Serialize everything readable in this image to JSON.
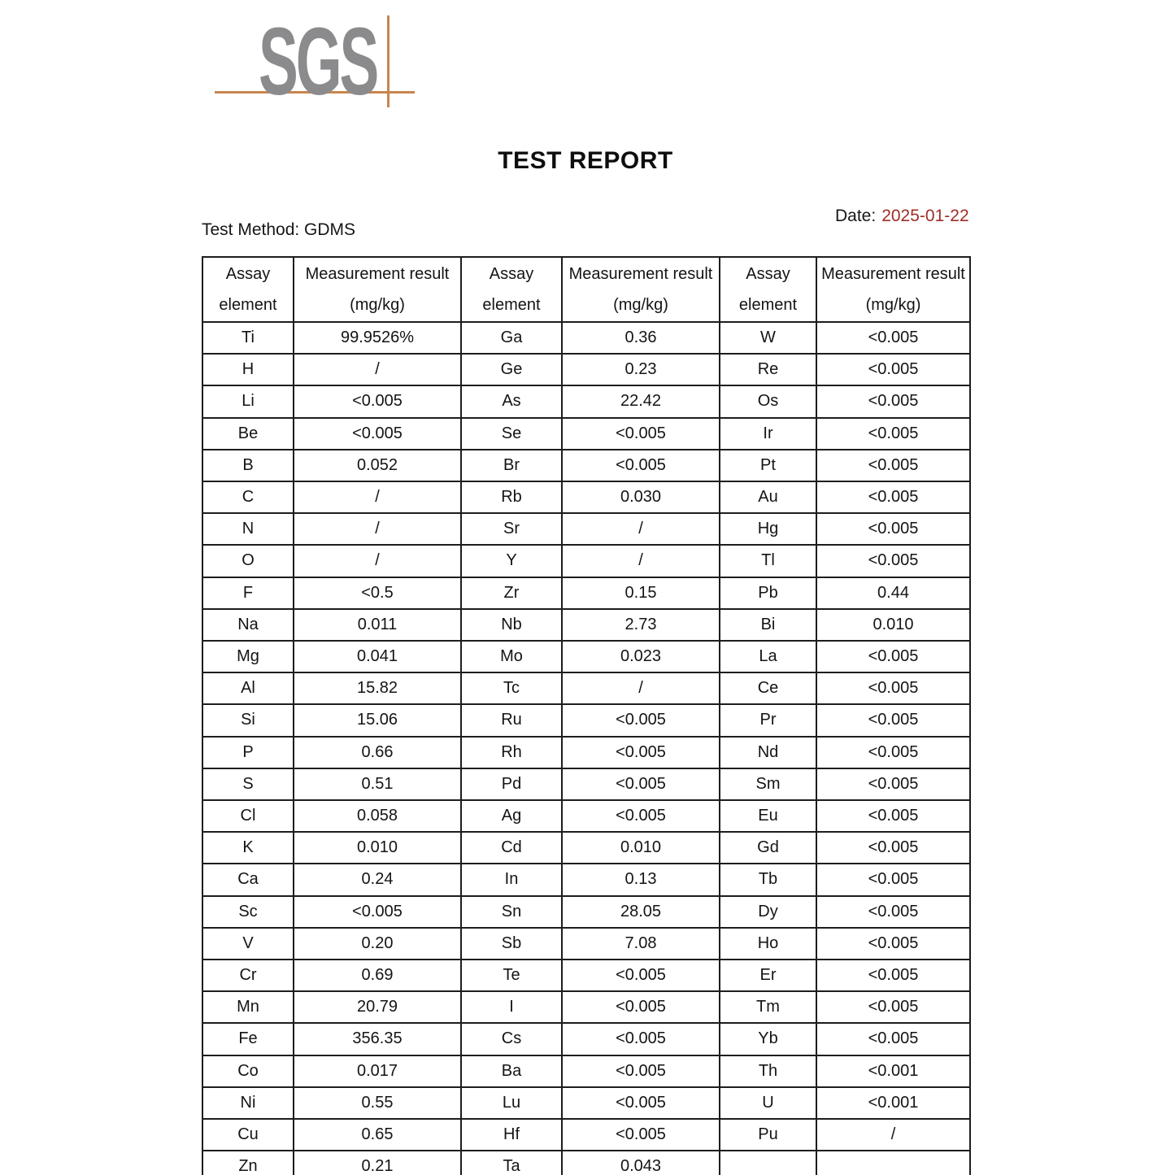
{
  "logo": {
    "text": "SGS"
  },
  "title": "TEST REPORT",
  "test_method": "Test Method: GDMS",
  "date": {
    "label": "Date:",
    "value": "2025-01-22"
  },
  "colors": {
    "date_value": "#a02d28",
    "logo_gray": "#8b8b8d",
    "logo_accent_line": "#c9854e",
    "table_border": "#1d1d1d"
  },
  "table": {
    "header": [
      {
        "line1": "Assay",
        "line2": "element"
      },
      {
        "line1": "Measurement result",
        "line2": "(mg/kg)"
      },
      {
        "line1": "Assay",
        "line2": "element"
      },
      {
        "line1": "Measurement result",
        "line2": "(mg/kg)"
      },
      {
        "line1": "Assay",
        "line2": "element"
      },
      {
        "line1": "Measurement result",
        "line2": "(mg/kg)"
      }
    ],
    "rows": [
      [
        "Ti",
        "99.9526%",
        "Ga",
        "0.36",
        "W",
        "<0.005"
      ],
      [
        "H",
        "/",
        "Ge",
        "0.23",
        "Re",
        "<0.005"
      ],
      [
        "Li",
        "<0.005",
        "As",
        "22.42",
        "Os",
        "<0.005"
      ],
      [
        "Be",
        "<0.005",
        "Se",
        "<0.005",
        "Ir",
        "<0.005"
      ],
      [
        "B",
        "0.052",
        "Br",
        "<0.005",
        "Pt",
        "<0.005"
      ],
      [
        "C",
        "/",
        "Rb",
        "0.030",
        "Au",
        "<0.005"
      ],
      [
        "N",
        "/",
        "Sr",
        "/",
        "Hg",
        "<0.005"
      ],
      [
        "O",
        "/",
        "Y",
        "/",
        "Tl",
        "<0.005"
      ],
      [
        "F",
        "<0.5",
        "Zr",
        "0.15",
        "Pb",
        "0.44"
      ],
      [
        "Na",
        "0.011",
        "Nb",
        "2.73",
        "Bi",
        "0.010"
      ],
      [
        "Mg",
        "0.041",
        "Mo",
        "0.023",
        "La",
        "<0.005"
      ],
      [
        "Al",
        "15.82",
        "Tc",
        "/",
        "Ce",
        "<0.005"
      ],
      [
        "Si",
        "15.06",
        "Ru",
        "<0.005",
        "Pr",
        "<0.005"
      ],
      [
        "P",
        "0.66",
        "Rh",
        "<0.005",
        "Nd",
        "<0.005"
      ],
      [
        "S",
        "0.51",
        "Pd",
        "<0.005",
        "Sm",
        "<0.005"
      ],
      [
        "Cl",
        "0.058",
        "Ag",
        "<0.005",
        "Eu",
        "<0.005"
      ],
      [
        "K",
        "0.010",
        "Cd",
        "0.010",
        "Gd",
        "<0.005"
      ],
      [
        "Ca",
        "0.24",
        "In",
        "0.13",
        "Tb",
        "<0.005"
      ],
      [
        "Sc",
        "<0.005",
        "Sn",
        "28.05",
        "Dy",
        "<0.005"
      ],
      [
        "V",
        "0.20",
        "Sb",
        "7.08",
        "Ho",
        "<0.005"
      ],
      [
        "Cr",
        "0.69",
        "Te",
        "<0.005",
        "Er",
        "<0.005"
      ],
      [
        "Mn",
        "20.79",
        "I",
        "<0.005",
        "Tm",
        "<0.005"
      ],
      [
        "Fe",
        "356.35",
        "Cs",
        "<0.005",
        "Yb",
        "<0.005"
      ],
      [
        "Co",
        "0.017",
        "Ba",
        "<0.005",
        "Th",
        "<0.001"
      ],
      [
        "Ni",
        "0.55",
        "Lu",
        "<0.005",
        "U",
        "<0.001"
      ],
      [
        "Cu",
        "0.65",
        "Hf",
        "<0.005",
        "Pu",
        "/"
      ],
      [
        "Zn",
        "0.21",
        "Ta",
        "0.043",
        "",
        ""
      ]
    ]
  }
}
